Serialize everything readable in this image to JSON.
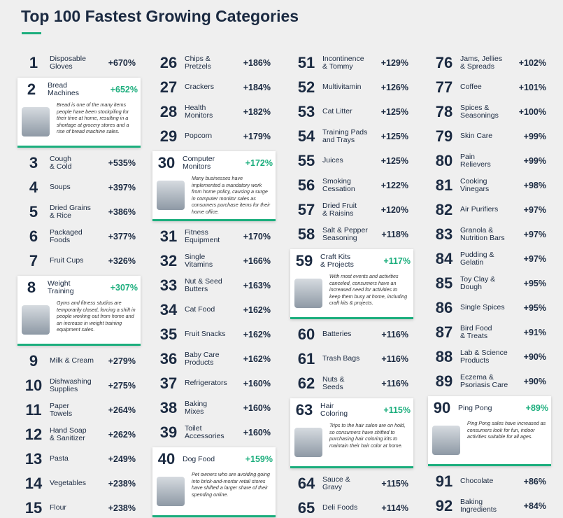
{
  "header": {
    "title": "Top 100 Fastest Growing Categories"
  },
  "columns": [
    {
      "items": [
        {
          "rank": 1,
          "name": "Disposable\nGloves",
          "growth": "+670%"
        },
        {
          "rank": 2,
          "name": "Bread\nMachines",
          "growth": "+652%",
          "description": "Bread is one of the many items people have been stockpiling for their time at home, resulting in a shortage at grocery stores and a rise of bread machine sales."
        },
        {
          "rank": 3,
          "name": "Cough\n& Cold",
          "growth": "+535%"
        },
        {
          "rank": 4,
          "name": "Soups",
          "growth": "+397%"
        },
        {
          "rank": 5,
          "name": "Dried Grains\n& Rice",
          "growth": "+386%"
        },
        {
          "rank": 6,
          "name": "Packaged\nFoods",
          "growth": "+377%"
        },
        {
          "rank": 7,
          "name": "Fruit Cups",
          "growth": "+326%"
        },
        {
          "rank": 8,
          "name": "Weight\nTraining",
          "growth": "+307%",
          "description": "Gyms and fitness studios are temporarily closed, forcing a shift in people working out from home and an increase in weight training equipment sales."
        },
        {
          "rank": 9,
          "name": "Milk & Cream",
          "growth": "+279%"
        },
        {
          "rank": 10,
          "name": "Dishwashing\nSupplies",
          "growth": "+275%"
        },
        {
          "rank": 11,
          "name": "Paper\nTowels",
          "growth": "+264%"
        },
        {
          "rank": 12,
          "name": "Hand Soap\n& Sanitizer",
          "growth": "+262%"
        },
        {
          "rank": 13,
          "name": "Pasta",
          "growth": "+249%"
        },
        {
          "rank": 14,
          "name": "Vegetables",
          "growth": "+238%"
        },
        {
          "rank": 15,
          "name": "Flour",
          "growth": "+238%"
        }
      ]
    },
    {
      "items": [
        {
          "rank": 26,
          "name": "Chips &\nPretzels",
          "growth": "+186%"
        },
        {
          "rank": 27,
          "name": "Crackers",
          "growth": "+184%"
        },
        {
          "rank": 28,
          "name": "Health\nMonitors",
          "growth": "+182%"
        },
        {
          "rank": 29,
          "name": "Popcorn",
          "growth": "+179%"
        },
        {
          "rank": 30,
          "name": "Computer\nMonitors",
          "growth": "+172%",
          "description": "Many businesses have implemented a mandatory work from home policy, causing a surge in computer monitor sales as consumers purchase items for their home office."
        },
        {
          "rank": 31,
          "name": "Fitness\nEquipment",
          "growth": "+170%"
        },
        {
          "rank": 32,
          "name": "Single\nVitamins",
          "growth": "+166%"
        },
        {
          "rank": 33,
          "name": "Nut & Seed\nButters",
          "growth": "+163%"
        },
        {
          "rank": 34,
          "name": "Cat Food",
          "growth": "+162%"
        },
        {
          "rank": 35,
          "name": "Fruit Snacks",
          "growth": "+162%"
        },
        {
          "rank": 36,
          "name": "Baby Care\nProducts",
          "growth": "+162%"
        },
        {
          "rank": 37,
          "name": "Refrigerators",
          "growth": "+160%"
        },
        {
          "rank": 38,
          "name": "Baking\nMixes",
          "growth": "+160%"
        },
        {
          "rank": 39,
          "name": "Toilet\nAccessories",
          "growth": "+160%"
        },
        {
          "rank": 40,
          "name": "Dog Food",
          "growth": "+159%",
          "description": "Pet owners who are avoiding going into brick-and-mortar retail stores have shifted a larger share of their spending online."
        }
      ]
    },
    {
      "items": [
        {
          "rank": 51,
          "name": "Incontinence\n& Tommy",
          "growth": "+129%"
        },
        {
          "rank": 52,
          "name": "Multivitamin",
          "growth": "+126%"
        },
        {
          "rank": 53,
          "name": "Cat Litter",
          "growth": "+125%"
        },
        {
          "rank": 54,
          "name": "Training Pads\nand Trays",
          "growth": "+125%"
        },
        {
          "rank": 55,
          "name": "Juices",
          "growth": "+125%"
        },
        {
          "rank": 56,
          "name": "Smoking\nCessation",
          "growth": "+122%"
        },
        {
          "rank": 57,
          "name": "Dried Fruit\n& Raisins",
          "growth": "+120%"
        },
        {
          "rank": 58,
          "name": "Salt & Pepper\nSeasoning",
          "growth": "+118%"
        },
        {
          "rank": 59,
          "name": "Craft Kits\n& Projects",
          "growth": "+117%",
          "description": "With most events and activities canceled, consumers have an increased need for activities to keep them busy at home, including craft kits & projects."
        },
        {
          "rank": 60,
          "name": "Batteries",
          "growth": "+116%"
        },
        {
          "rank": 61,
          "name": "Trash Bags",
          "growth": "+116%"
        },
        {
          "rank": 62,
          "name": "Nuts &\nSeeds",
          "growth": "+116%"
        },
        {
          "rank": 63,
          "name": "Hair\nColoring",
          "growth": "+115%",
          "description": "Trips to the hair salon are on hold, so consumers have shifted to purchasing hair coloring kits to maintain their hair color at home."
        },
        {
          "rank": 64,
          "name": "Sauce &\nGravy",
          "growth": "+115%"
        },
        {
          "rank": 65,
          "name": "Deli Foods",
          "growth": "+114%"
        }
      ]
    },
    {
      "items": [
        {
          "rank": 76,
          "name": "Jams, Jellies\n& Spreads",
          "growth": "+102%"
        },
        {
          "rank": 77,
          "name": "Coffee",
          "growth": "+101%"
        },
        {
          "rank": 78,
          "name": "Spices &\nSeasonings",
          "growth": "+100%"
        },
        {
          "rank": 79,
          "name": "Skin Care",
          "growth": "+99%"
        },
        {
          "rank": 80,
          "name": "Pain\nRelievers",
          "growth": "+99%"
        },
        {
          "rank": 81,
          "name": "Cooking\nVinegars",
          "growth": "+98%"
        },
        {
          "rank": 82,
          "name": "Air Purifiers",
          "growth": "+97%"
        },
        {
          "rank": 83,
          "name": "Granola &\nNutrition Bars",
          "growth": "+97%"
        },
        {
          "rank": 84,
          "name": "Pudding &\nGelatin",
          "growth": "+97%"
        },
        {
          "rank": 85,
          "name": "Toy Clay &\nDough",
          "growth": "+95%"
        },
        {
          "rank": 86,
          "name": "Single Spices",
          "growth": "+95%"
        },
        {
          "rank": 87,
          "name": "Bird Food\n& Treats",
          "growth": "+91%"
        },
        {
          "rank": 88,
          "name": "Lab & Science\nProducts",
          "growth": "+90%"
        },
        {
          "rank": 89,
          "name": "Eczema &\nPsoriasis Care",
          "growth": "+90%"
        },
        {
          "rank": 90,
          "name": "Ping Pong",
          "growth": "+89%",
          "description": "Ping Pong sales have increased as consumers look for fun, indoor activities suitable for all ages."
        },
        {
          "rank": 91,
          "name": "Chocolate",
          "growth": "+86%"
        },
        {
          "rank": 92,
          "name": "Baking\nIngredients",
          "growth": "+84%"
        }
      ]
    }
  ]
}
